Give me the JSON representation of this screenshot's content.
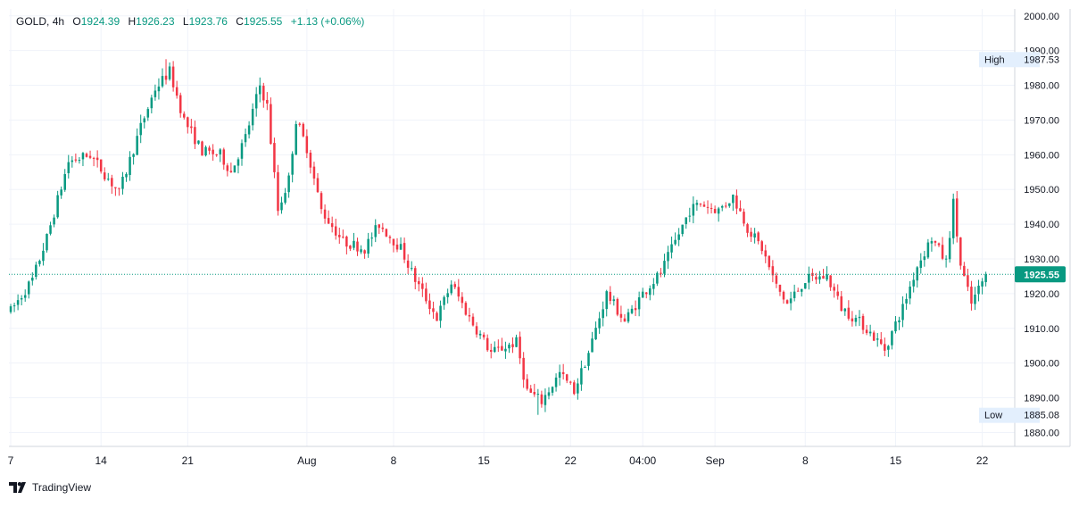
{
  "legend": {
    "symbol": "GOLD",
    "interval": "4h",
    "open_label": "O",
    "open": "1924.39",
    "high_label": "H",
    "high": "1926.23",
    "low_label": "L",
    "low": "1923.76",
    "close_label": "C",
    "close": "1925.55",
    "change": "+1.13 (+0.06%)"
  },
  "brand": {
    "name": "TradingView"
  },
  "colors": {
    "up": "#089981",
    "down": "#F23645",
    "grid": "#F0F3FA",
    "axis_text": "#131722",
    "badge_bg": "#E3EFFD"
  },
  "chart_data": {
    "type": "candlestick",
    "symbol": "GOLD",
    "interval": "4h",
    "ylim": [
      1876,
      2002
    ],
    "y_ticks": [
      2000,
      1990,
      1980,
      1970,
      1960,
      1950,
      1940,
      1930,
      1920,
      1910,
      1900,
      1890,
      1880
    ],
    "x_ticks": [
      {
        "label": "7",
        "index": 0
      },
      {
        "label": "14",
        "index": 25
      },
      {
        "label": "21",
        "index": 49
      },
      {
        "label": "Aug",
        "index": 82
      },
      {
        "label": "8",
        "index": 106
      },
      {
        "label": "15",
        "index": 131
      },
      {
        "label": "22",
        "index": 155
      },
      {
        "label": "04:00",
        "index": 175
      },
      {
        "label": "Sep",
        "index": 195
      },
      {
        "label": "8",
        "index": 220
      },
      {
        "label": "15",
        "index": 245
      },
      {
        "label": "22",
        "index": 269
      }
    ],
    "x_span": [
      -0.5,
      278
    ],
    "high_marker": {
      "label": "High",
      "value": "1987.53"
    },
    "low_marker": {
      "label": "Low",
      "value": "1885.08"
    },
    "last_price": {
      "label": "1925.55",
      "value": 1925.55
    },
    "anchors": [
      [
        0,
        1915
      ],
      [
        6,
        1924
      ],
      [
        10,
        1936
      ],
      [
        16,
        1958
      ],
      [
        22,
        1960
      ],
      [
        30,
        1949
      ],
      [
        36,
        1968
      ],
      [
        40,
        1979
      ],
      [
        44,
        1984
      ],
      [
        48,
        1970
      ],
      [
        53,
        1961
      ],
      [
        58,
        1960
      ],
      [
        61,
        1955
      ],
      [
        65,
        1965
      ],
      [
        69,
        1980
      ],
      [
        71,
        1974
      ],
      [
        74,
        1944
      ],
      [
        77,
        1953
      ],
      [
        79,
        1970
      ],
      [
        82,
        1962
      ],
      [
        86,
        1944
      ],
      [
        92,
        1935
      ],
      [
        98,
        1933
      ],
      [
        102,
        1940
      ],
      [
        108,
        1933
      ],
      [
        112,
        1924
      ],
      [
        118,
        1913
      ],
      [
        122,
        1923
      ],
      [
        127,
        1913
      ],
      [
        133,
        1903
      ],
      [
        140,
        1906
      ],
      [
        143,
        1892
      ],
      [
        147,
        1889
      ],
      [
        152,
        1897
      ],
      [
        156,
        1892
      ],
      [
        160,
        1903
      ],
      [
        165,
        1920
      ],
      [
        170,
        1912
      ],
      [
        175,
        1920
      ],
      [
        180,
        1926
      ],
      [
        184,
        1935
      ],
      [
        188,
        1944
      ],
      [
        191,
        1946
      ],
      [
        196,
        1944
      ],
      [
        200,
        1948
      ],
      [
        204,
        1939
      ],
      [
        208,
        1933
      ],
      [
        212,
        1922
      ],
      [
        215,
        1917
      ],
      [
        220,
        1924
      ],
      [
        226,
        1925
      ],
      [
        230,
        1916
      ],
      [
        236,
        1911
      ],
      [
        242,
        1904
      ],
      [
        247,
        1916
      ],
      [
        251,
        1928
      ],
      [
        255,
        1936
      ],
      [
        259,
        1929
      ],
      [
        261,
        1946
      ],
      [
        263,
        1928
      ],
      [
        266,
        1917
      ],
      [
        270,
        1925.55
      ]
    ]
  }
}
